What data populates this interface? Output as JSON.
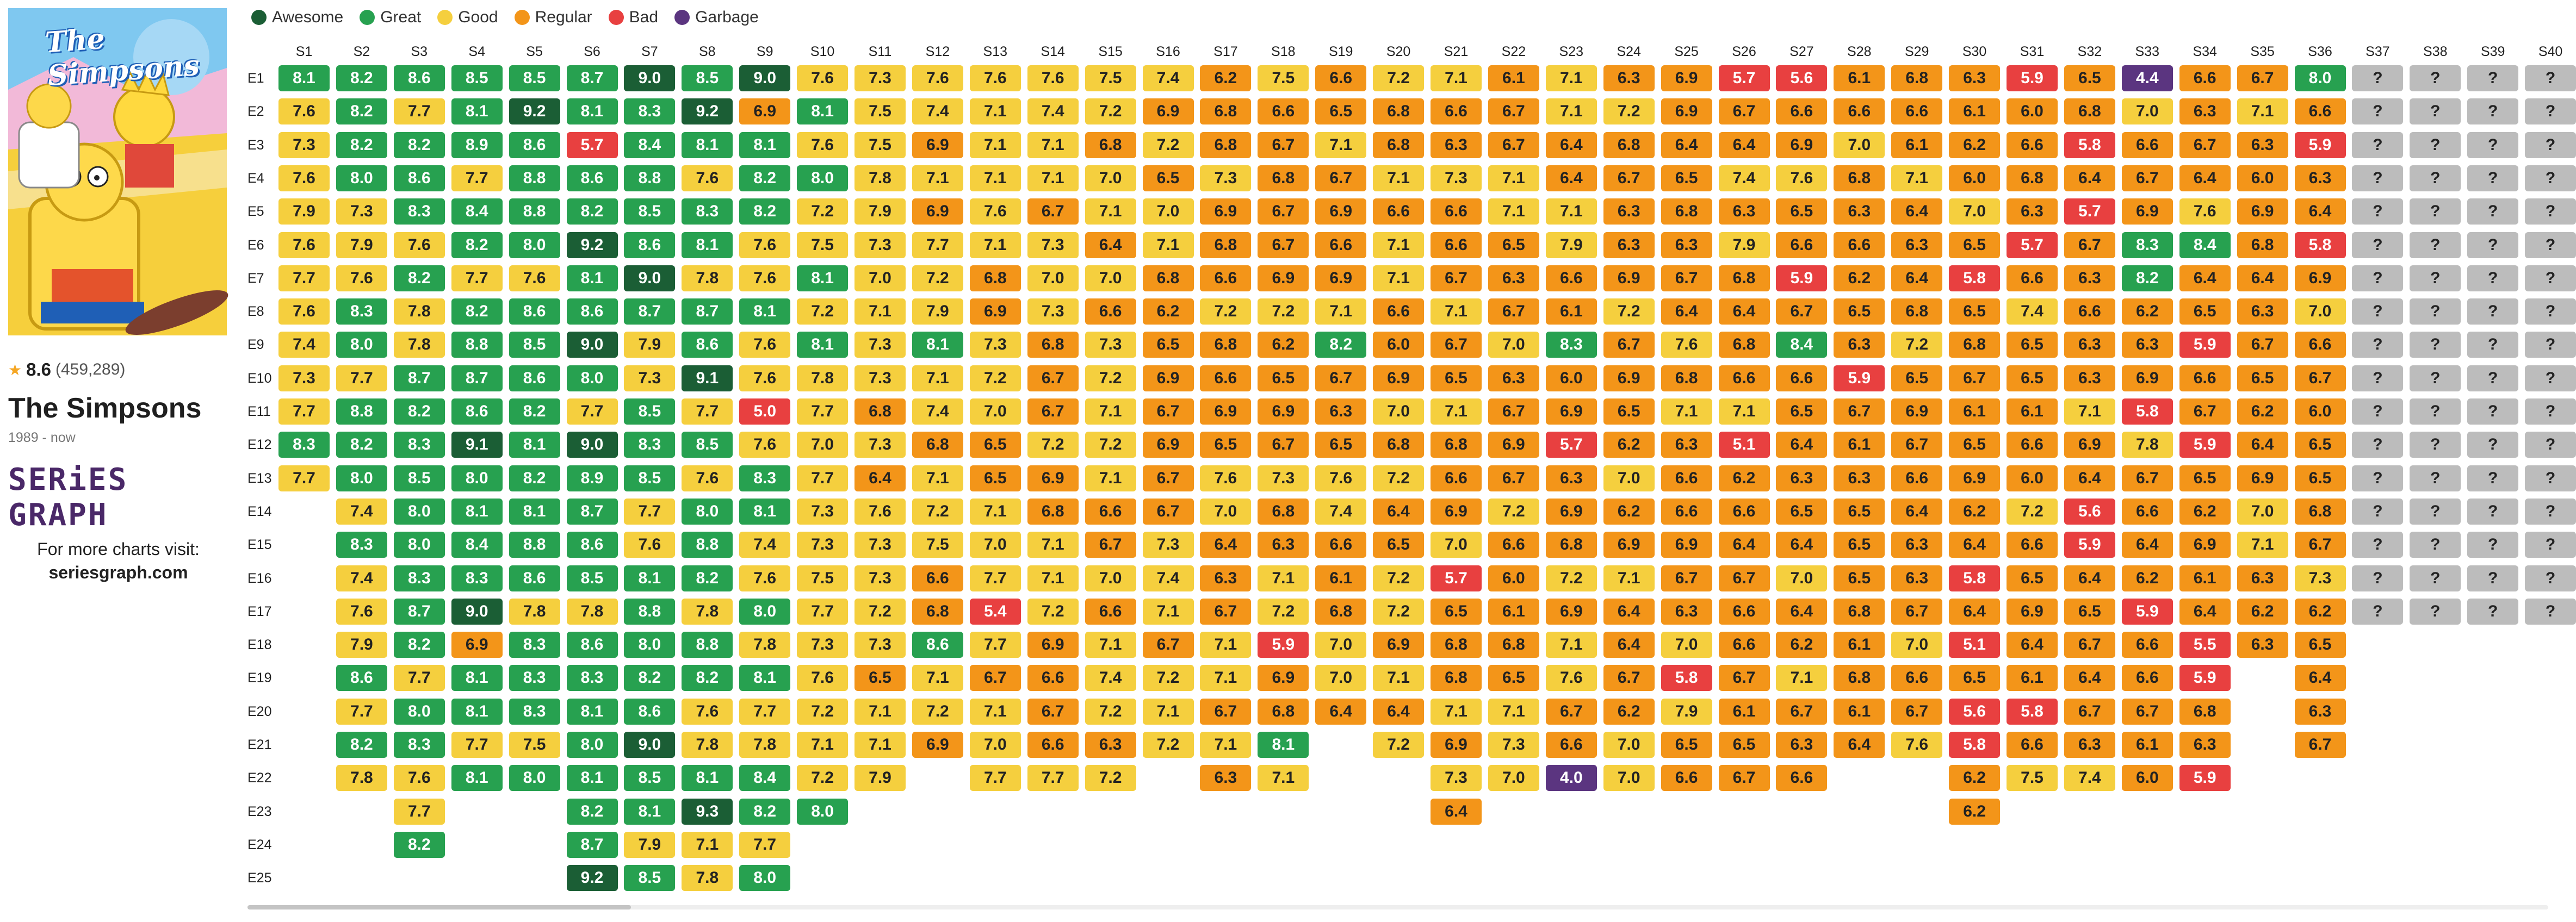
{
  "show": {
    "poster_title": "The Simpsons",
    "rating": "8.6",
    "votes": "(459,289)",
    "title": "The Simpsons",
    "years": "1989 - now",
    "brand": "SERiES GRAPH",
    "visit_text": "For more charts visit:",
    "site": "seriesgraph.com",
    "star_icon": "star-icon"
  },
  "legend": [
    {
      "label": "Awesome",
      "color": "#1b5e35"
    },
    {
      "label": "Great",
      "color": "#27a150"
    },
    {
      "label": "Good",
      "color": "#f5cf3e"
    },
    {
      "label": "Regular",
      "color": "#f39519"
    },
    {
      "label": "Bad",
      "color": "#e84040"
    },
    {
      "label": "Garbage",
      "color": "#5b3580"
    }
  ],
  "chart_data": {
    "type": "heatmap",
    "seasons": [
      "S1",
      "S2",
      "S3",
      "S4",
      "S5",
      "S6",
      "S7",
      "S8",
      "S9",
      "S10",
      "S11",
      "S12",
      "S13",
      "S14",
      "S15",
      "S16",
      "S17",
      "S18",
      "S19",
      "S20",
      "S21",
      "S22",
      "S23",
      "S24",
      "S25",
      "S26",
      "S27",
      "S28",
      "S29",
      "S30",
      "S31",
      "S32",
      "S33",
      "S34",
      "S35",
      "S36",
      "S37",
      "S38",
      "S39",
      "S40"
    ],
    "episodes": [
      "E1",
      "E2",
      "E3",
      "E4",
      "E5",
      "E6",
      "E7",
      "E8",
      "E9",
      "E10",
      "E11",
      "E12",
      "E13",
      "E14",
      "E15",
      "E16",
      "E17",
      "E18",
      "E19",
      "E20",
      "E21",
      "E22",
      "E23",
      "E24",
      "E25"
    ],
    "unknown_label": "?",
    "ratings": [
      [
        "8.1",
        "8.2",
        "8.6",
        "8.5",
        "8.5",
        "8.7",
        "9.0",
        "8.5",
        "9.0",
        "7.6",
        "7.3",
        "7.6",
        "7.6",
        "7.6",
        "7.5",
        "7.4",
        "6.2",
        "7.5",
        "6.6",
        "7.2",
        "7.1",
        "6.1",
        "7.1",
        "6.3",
        "6.9",
        "5.7",
        "5.6",
        "6.1",
        "6.8",
        "6.3",
        "5.9",
        "6.5",
        "4.4",
        "6.6",
        "6.7",
        "8.0",
        "?",
        "?",
        "?",
        "?"
      ],
      [
        "7.6",
        "8.2",
        "7.7",
        "8.1",
        "9.2",
        "8.1",
        "8.3",
        "9.2",
        "6.9",
        "8.1",
        "7.5",
        "7.4",
        "7.1",
        "7.4",
        "7.2",
        "6.9",
        "6.8",
        "6.6",
        "6.5",
        "6.8",
        "6.6",
        "6.7",
        "7.1",
        "7.2",
        "6.9",
        "6.7",
        "6.6",
        "6.6",
        "6.6",
        "6.1",
        "6.0",
        "6.8",
        "7.0",
        "6.3",
        "7.1",
        "6.6",
        "?",
        "?",
        "?",
        "?"
      ],
      [
        "7.3",
        "8.2",
        "8.2",
        "8.9",
        "8.6",
        "5.7",
        "8.4",
        "8.1",
        "8.1",
        "7.6",
        "7.5",
        "6.9",
        "7.1",
        "7.1",
        "6.8",
        "7.2",
        "6.8",
        "6.7",
        "7.1",
        "6.8",
        "6.3",
        "6.7",
        "6.4",
        "6.8",
        "6.4",
        "6.4",
        "6.9",
        "7.0",
        "6.1",
        "6.2",
        "6.6",
        "5.8",
        "6.6",
        "6.7",
        "6.3",
        "5.9",
        "?",
        "?",
        "?",
        "?"
      ],
      [
        "7.6",
        "8.0",
        "8.6",
        "7.7",
        "8.8",
        "8.6",
        "8.8",
        "7.6",
        "8.2",
        "8.0",
        "7.8",
        "7.1",
        "7.1",
        "7.1",
        "7.0",
        "6.5",
        "7.3",
        "6.8",
        "6.7",
        "7.1",
        "7.3",
        "7.1",
        "6.4",
        "6.7",
        "6.5",
        "7.4",
        "7.6",
        "6.8",
        "7.1",
        "6.0",
        "6.8",
        "6.4",
        "6.7",
        "6.4",
        "6.0",
        "6.3",
        "?",
        "?",
        "?",
        "?"
      ],
      [
        "7.9",
        "7.3",
        "8.3",
        "8.4",
        "8.8",
        "8.2",
        "8.5",
        "8.3",
        "8.2",
        "7.2",
        "7.9",
        "6.9",
        "7.6",
        "6.7",
        "7.1",
        "7.0",
        "6.9",
        "6.7",
        "6.9",
        "6.6",
        "6.6",
        "7.1",
        "7.1",
        "6.3",
        "6.8",
        "6.3",
        "6.5",
        "6.3",
        "6.4",
        "7.0",
        "6.3",
        "5.7",
        "6.9",
        "7.6",
        "6.9",
        "6.4",
        "?",
        "?",
        "?",
        "?"
      ],
      [
        "7.6",
        "7.9",
        "7.6",
        "8.2",
        "8.0",
        "9.2",
        "8.6",
        "8.1",
        "7.6",
        "7.5",
        "7.3",
        "7.7",
        "7.1",
        "7.3",
        "6.4",
        "7.1",
        "6.8",
        "6.7",
        "6.6",
        "7.1",
        "6.6",
        "6.5",
        "7.9",
        "6.3",
        "6.3",
        "7.9",
        "6.6",
        "6.6",
        "6.3",
        "6.5",
        "5.7",
        "6.7",
        "8.3",
        "8.4",
        "6.8",
        "5.8",
        "?",
        "?",
        "?",
        "?"
      ],
      [
        "7.7",
        "7.6",
        "8.2",
        "7.7",
        "7.6",
        "8.1",
        "9.0",
        "7.8",
        "7.6",
        "8.1",
        "7.0",
        "7.2",
        "6.8",
        "7.0",
        "7.0",
        "6.8",
        "6.6",
        "6.9",
        "6.9",
        "7.1",
        "6.7",
        "6.3",
        "6.6",
        "6.9",
        "6.7",
        "6.8",
        "5.9",
        "6.2",
        "6.4",
        "5.8",
        "6.6",
        "6.3",
        "8.2",
        "6.4",
        "6.4",
        "6.9",
        "?",
        "?",
        "?",
        "?"
      ],
      [
        "7.6",
        "8.3",
        "7.8",
        "8.2",
        "8.6",
        "8.6",
        "8.7",
        "8.7",
        "8.1",
        "7.2",
        "7.1",
        "7.9",
        "6.9",
        "7.3",
        "6.6",
        "6.2",
        "7.2",
        "7.2",
        "7.1",
        "6.6",
        "7.1",
        "6.7",
        "6.1",
        "7.2",
        "6.4",
        "6.4",
        "6.7",
        "6.5",
        "6.8",
        "6.5",
        "7.4",
        "6.6",
        "6.2",
        "6.5",
        "6.3",
        "7.0",
        "?",
        "?",
        "?",
        "?"
      ],
      [
        "7.4",
        "8.0",
        "7.8",
        "8.8",
        "8.5",
        "9.0",
        "7.9",
        "8.6",
        "7.6",
        "8.1",
        "7.3",
        "8.1",
        "7.3",
        "6.8",
        "7.3",
        "6.5",
        "6.8",
        "6.2",
        "8.2",
        "6.0",
        "6.7",
        "7.0",
        "8.3",
        "6.7",
        "7.6",
        "6.8",
        "8.4",
        "6.3",
        "7.2",
        "6.8",
        "6.5",
        "6.3",
        "6.3",
        "5.9",
        "6.7",
        "6.6",
        "?",
        "?",
        "?",
        "?"
      ],
      [
        "7.3",
        "7.7",
        "8.7",
        "8.7",
        "8.6",
        "8.0",
        "7.3",
        "9.1",
        "7.6",
        "7.8",
        "7.3",
        "7.1",
        "7.2",
        "6.7",
        "7.2",
        "6.9",
        "6.6",
        "6.5",
        "6.7",
        "6.9",
        "6.5",
        "6.3",
        "6.0",
        "6.9",
        "6.8",
        "6.6",
        "6.6",
        "5.9",
        "6.5",
        "6.7",
        "6.5",
        "6.3",
        "6.9",
        "6.6",
        "6.5",
        "6.7",
        "?",
        "?",
        "?",
        "?"
      ],
      [
        "7.7",
        "8.8",
        "8.2",
        "8.6",
        "8.2",
        "7.7",
        "8.5",
        "7.7",
        "5.0",
        "7.7",
        "6.8",
        "7.4",
        "7.0",
        "6.7",
        "7.1",
        "6.7",
        "6.9",
        "6.9",
        "6.3",
        "7.0",
        "7.1",
        "6.7",
        "6.9",
        "6.5",
        "7.1",
        "7.1",
        "6.5",
        "6.7",
        "6.9",
        "6.1",
        "6.1",
        "7.1",
        "5.8",
        "6.7",
        "6.2",
        "6.0",
        "?",
        "?",
        "?",
        "?"
      ],
      [
        "8.3",
        "8.2",
        "8.3",
        "9.1",
        "8.1",
        "9.0",
        "8.3",
        "8.5",
        "7.6",
        "7.0",
        "7.3",
        "6.8",
        "6.5",
        "7.2",
        "7.2",
        "6.9",
        "6.5",
        "6.7",
        "6.5",
        "6.8",
        "6.8",
        "6.9",
        "5.7",
        "6.2",
        "6.3",
        "5.1",
        "6.4",
        "6.1",
        "6.7",
        "6.5",
        "6.6",
        "6.9",
        "7.8",
        "5.9",
        "6.4",
        "6.5",
        "?",
        "?",
        "?",
        "?"
      ],
      [
        "7.7",
        "8.0",
        "8.5",
        "8.0",
        "8.2",
        "8.9",
        "8.5",
        "7.6",
        "8.3",
        "7.7",
        "6.4",
        "7.1",
        "6.5",
        "6.9",
        "7.1",
        "6.7",
        "7.6",
        "7.3",
        "7.6",
        "7.2",
        "6.6",
        "6.7",
        "6.3",
        "7.0",
        "6.6",
        "6.2",
        "6.3",
        "6.3",
        "6.6",
        "6.9",
        "6.0",
        "6.4",
        "6.7",
        "6.5",
        "6.9",
        "6.5",
        "?",
        "?",
        "?",
        "?"
      ],
      [
        "",
        "7.4",
        "8.0",
        "8.1",
        "8.1",
        "8.7",
        "7.7",
        "8.0",
        "8.1",
        "7.3",
        "7.6",
        "7.2",
        "7.1",
        "6.8",
        "6.6",
        "6.7",
        "7.0",
        "6.8",
        "7.4",
        "6.4",
        "6.9",
        "7.2",
        "6.9",
        "6.2",
        "6.6",
        "6.6",
        "6.5",
        "6.5",
        "6.4",
        "6.2",
        "7.2",
        "5.6",
        "6.6",
        "6.2",
        "7.0",
        "6.8",
        "?",
        "?",
        "?",
        "?"
      ],
      [
        "",
        "8.3",
        "8.0",
        "8.4",
        "8.8",
        "8.6",
        "7.6",
        "8.8",
        "7.4",
        "7.3",
        "7.3",
        "7.5",
        "7.0",
        "7.1",
        "6.7",
        "7.3",
        "6.4",
        "6.3",
        "6.6",
        "6.5",
        "7.0",
        "6.6",
        "6.8",
        "6.9",
        "6.9",
        "6.4",
        "6.4",
        "6.5",
        "6.3",
        "6.4",
        "6.6",
        "5.9",
        "6.4",
        "6.9",
        "7.1",
        "6.7",
        "?",
        "?",
        "?",
        "?"
      ],
      [
        "",
        "7.4",
        "8.3",
        "8.3",
        "8.6",
        "8.5",
        "8.1",
        "8.2",
        "7.6",
        "7.5",
        "7.3",
        "6.6",
        "7.7",
        "7.1",
        "7.0",
        "7.4",
        "6.3",
        "7.1",
        "6.1",
        "7.2",
        "5.7",
        "6.0",
        "7.2",
        "7.1",
        "6.7",
        "6.7",
        "7.0",
        "6.5",
        "6.3",
        "5.8",
        "6.5",
        "6.4",
        "6.2",
        "6.1",
        "6.3",
        "7.3",
        "?",
        "?",
        "?",
        "?"
      ],
      [
        "",
        "7.6",
        "8.7",
        "9.0",
        "7.8",
        "7.8",
        "8.8",
        "7.8",
        "8.0",
        "7.7",
        "7.2",
        "6.8",
        "5.4",
        "7.2",
        "6.6",
        "7.1",
        "6.7",
        "7.2",
        "6.8",
        "7.2",
        "6.5",
        "6.1",
        "6.9",
        "6.4",
        "6.3",
        "6.6",
        "6.4",
        "6.8",
        "6.7",
        "6.4",
        "6.9",
        "6.5",
        "5.9",
        "6.4",
        "6.2",
        "6.2",
        "?",
        "?",
        "?",
        "?"
      ],
      [
        "",
        "7.9",
        "8.2",
        "6.9",
        "8.3",
        "8.6",
        "8.0",
        "8.8",
        "7.8",
        "7.3",
        "7.3",
        "8.6",
        "7.7",
        "6.9",
        "7.1",
        "6.7",
        "7.1",
        "5.9",
        "7.0",
        "6.9",
        "6.8",
        "6.8",
        "7.1",
        "6.4",
        "7.0",
        "6.6",
        "6.2",
        "6.1",
        "7.0",
        "5.1",
        "6.4",
        "6.7",
        "6.6",
        "5.5",
        "6.3",
        "6.5",
        "",
        "",
        "",
        ""
      ],
      [
        "",
        "8.6",
        "7.7",
        "8.1",
        "8.3",
        "8.3",
        "8.2",
        "8.2",
        "8.1",
        "7.6",
        "6.5",
        "7.1",
        "6.7",
        "6.6",
        "7.4",
        "7.2",
        "7.1",
        "6.9",
        "7.0",
        "7.1",
        "6.8",
        "6.5",
        "7.6",
        "6.7",
        "5.8",
        "6.7",
        "7.1",
        "6.8",
        "6.6",
        "6.5",
        "6.1",
        "6.4",
        "6.6",
        "5.9",
        "",
        "6.4",
        "",
        "",
        "",
        ""
      ],
      [
        "",
        "7.7",
        "8.0",
        "8.1",
        "8.3",
        "8.1",
        "8.6",
        "7.6",
        "7.7",
        "7.2",
        "7.1",
        "7.2",
        "7.1",
        "6.7",
        "7.2",
        "7.1",
        "6.7",
        "6.8",
        "6.4",
        "6.4",
        "7.1",
        "7.1",
        "6.7",
        "6.2",
        "7.9",
        "6.1",
        "6.7",
        "6.1",
        "6.7",
        "5.6",
        "5.8",
        "6.7",
        "6.7",
        "6.8",
        "",
        "6.3",
        "",
        "",
        "",
        ""
      ],
      [
        "",
        "8.2",
        "8.3",
        "7.7",
        "7.5",
        "8.0",
        "9.0",
        "7.8",
        "7.8",
        "7.1",
        "7.1",
        "6.9",
        "7.0",
        "6.6",
        "6.3",
        "7.2",
        "7.1",
        "8.1",
        "",
        "7.2",
        "6.9",
        "7.3",
        "6.6",
        "7.0",
        "6.5",
        "6.5",
        "6.3",
        "6.4",
        "7.6",
        "5.8",
        "6.6",
        "6.3",
        "6.1",
        "6.3",
        "",
        "6.7",
        "",
        "",
        "",
        ""
      ],
      [
        "",
        "7.8",
        "7.6",
        "8.1",
        "8.0",
        "8.1",
        "8.5",
        "8.1",
        "8.4",
        "7.2",
        "7.9",
        "",
        "7.7",
        "7.7",
        "7.2",
        "",
        "6.3",
        "7.1",
        "",
        "",
        "7.3",
        "7.0",
        "4.0",
        "7.0",
        "6.6",
        "6.7",
        "6.6",
        "",
        "",
        "6.2",
        "7.5",
        "7.4",
        "6.0",
        "5.9",
        "",
        "",
        "",
        "",
        "",
        ""
      ],
      [
        "",
        "",
        "7.7",
        "",
        "",
        "8.2",
        "8.1",
        "9.3",
        "8.2",
        "8.0",
        "",
        "",
        "",
        "",
        "",
        "",
        "",
        "",
        "",
        "",
        "6.4",
        "",
        "",
        "",
        "",
        "",
        "",
        "",
        "",
        "6.2",
        "",
        "",
        "",
        "",
        "",
        "",
        "",
        "",
        "",
        ""
      ],
      [
        "",
        "",
        "8.2",
        "",
        "",
        "8.7",
        "7.9",
        "7.1",
        "7.7",
        "",
        "",
        "",
        "",
        "",
        "",
        "",
        "",
        "",
        "",
        "",
        "",
        "",
        "",
        "",
        "",
        "",
        "",
        "",
        "",
        "",
        "",
        "",
        "",
        "",
        "",
        "",
        "",
        "",
        "",
        ""
      ],
      [
        "",
        "",
        "",
        "",
        "",
        "9.2",
        "8.5",
        "7.8",
        "8.0",
        "",
        "",
        "",
        "",
        "",
        "",
        "",
        "",
        "",
        "",
        "",
        "",
        "",
        "",
        "",
        "",
        "",
        "",
        "",
        "",
        "",
        "",
        "",
        "",
        "",
        "",
        "",
        "",
        "",
        "",
        ""
      ]
    ]
  }
}
